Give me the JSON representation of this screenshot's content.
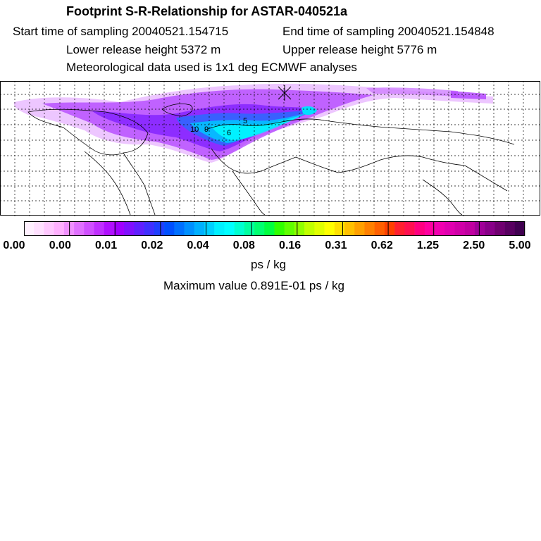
{
  "title": "Footprint S-R-Relationship for ASTAR-040521a",
  "start_time": "Start time of sampling 20040521.154715",
  "end_time": "End time of sampling 20040521.154848",
  "lower_height": "Lower release height 5372 m",
  "upper_height": "Upper release height 5776 m",
  "met_data": "Meteorological data used is 1x1 deg ECMWF analyses",
  "units": "ps / kg",
  "max_value": "Maximum value  0.891E-01 ps / kg",
  "map_point_labels": [
    "10",
    "9",
    "6",
    "5"
  ],
  "colorbar": {
    "tick_labels": [
      "0.00",
      "0.00",
      "0.01",
      "0.02",
      "0.04",
      "0.08",
      "0.16",
      "0.31",
      "0.62",
      "1.25",
      "2.50",
      "5.00"
    ],
    "colors": [
      "#fff0ff",
      "#ffe0ff",
      "#ffc8ff",
      "#ffb0ff",
      "#f090ff",
      "#e070ff",
      "#d050ff",
      "#c030ff",
      "#b010ff",
      "#a000ff",
      "#8010ff",
      "#6020ff",
      "#4030ff",
      "#2040ff",
      "#0050ff",
      "#0070ff",
      "#0090ff",
      "#00b0ff",
      "#00d0ff",
      "#00f0ff",
      "#00ffff",
      "#00ffd0",
      "#00ffa0",
      "#00ff70",
      "#00ff40",
      "#30ff00",
      "#60ff00",
      "#90ff00",
      "#c0ff00",
      "#e0ff00",
      "#ffff00",
      "#ffe000",
      "#ffc000",
      "#ffa000",
      "#ff8000",
      "#ff6000",
      "#ff4000",
      "#ff2030",
      "#ff1050",
      "#ff0080",
      "#ff00a0",
      "#f000b0",
      "#e000b0",
      "#d000a8",
      "#c000a0",
      "#a00098",
      "#880088",
      "#700070",
      "#580060",
      "#400050"
    ]
  }
}
